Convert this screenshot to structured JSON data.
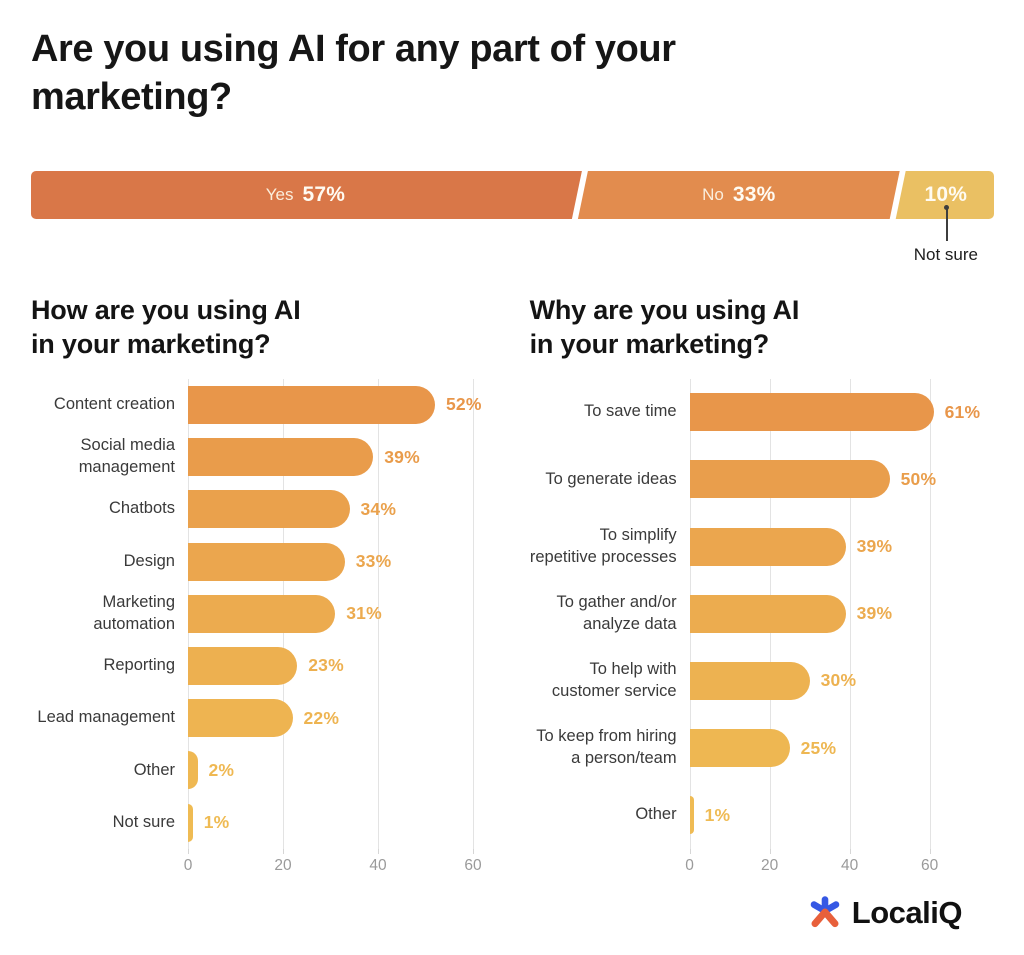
{
  "header": {
    "title": "Are you using AI for any part of your marketing?"
  },
  "chart_data": [
    {
      "type": "stacked-bar",
      "question": "Are you using AI for any part of your marketing?",
      "segments": [
        {
          "label": "Yes",
          "value": 57,
          "display": "57%",
          "color": "#D97748"
        },
        {
          "label": "No",
          "value": 33,
          "display": "33%",
          "color": "#E28C4E"
        },
        {
          "label": "",
          "value": 10,
          "display": "10%",
          "color": "#EAC063"
        }
      ],
      "callout_label": "Not sure"
    },
    {
      "type": "bar",
      "orientation": "horizontal",
      "title": "How are you using AI\nin your marketing?",
      "categories": [
        "Content creation",
        "Social media\nmanagement",
        "Chatbots",
        "Design",
        "Marketing\nautomation",
        "Reporting",
        "Lead management",
        "Other",
        "Not sure"
      ],
      "values": [
        52,
        39,
        34,
        33,
        31,
        23,
        22,
        2,
        1
      ],
      "labels": [
        "52%",
        "39%",
        "34%",
        "33%",
        "31%",
        "23%",
        "22%",
        "2%",
        "1%"
      ],
      "colors": [
        "#E8964A",
        "#E99C4B",
        "#EAA14C",
        "#EBA64E",
        "#ECAB4F",
        "#EDB050",
        "#EEB451",
        "#EFB852",
        "#EFBB53"
      ],
      "xlabel": "",
      "ticks": [
        0,
        20,
        40,
        60
      ],
      "xlim": [
        0,
        66
      ],
      "grid": true,
      "value_suffix": "%"
    },
    {
      "type": "bar",
      "orientation": "horizontal",
      "title": "Why are you using AI\nin your marketing?",
      "categories": [
        "To save time",
        "To generate ideas",
        "To simplify\nrepetitive processes",
        "To gather and/or\nanalyze data",
        "To help with\ncustomer service",
        "To keep from hiring\na person/team",
        "Other"
      ],
      "values": [
        61,
        50,
        39,
        39,
        30,
        25,
        1
      ],
      "labels": [
        "61%",
        "50%",
        "39%",
        "39%",
        "30%",
        "25%",
        "1%"
      ],
      "colors": [
        "#E8964A",
        "#E99E4C",
        "#EBA64E",
        "#ECAC4F",
        "#EDB251",
        "#EEB752",
        "#EFBB54"
      ],
      "xlabel": "",
      "ticks": [
        0,
        20,
        40,
        60
      ],
      "xlim": [
        0,
        70
      ],
      "grid": true,
      "value_suffix": "%"
    }
  ],
  "footer": {
    "brand": "LocaliQ"
  }
}
